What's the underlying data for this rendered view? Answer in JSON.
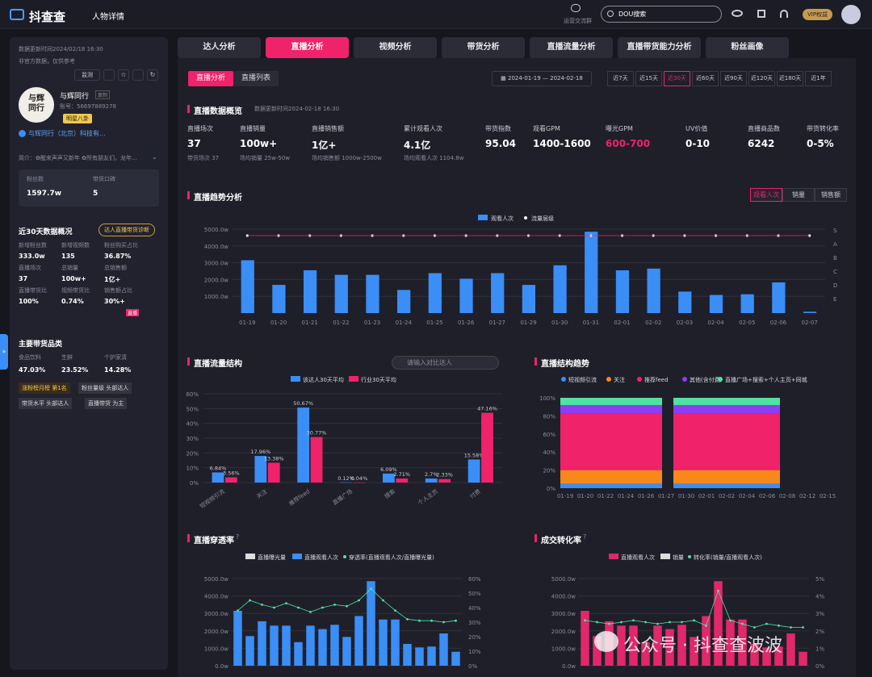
{
  "header": {
    "logo": "抖查查",
    "page_title": "人物详情",
    "live_group": "运营交流群",
    "search_placeholder": "DOU搜索",
    "vip": "VIP权益"
  },
  "tabs": [
    "达人分析",
    "直播分析",
    "视频分析",
    "带货分析",
    "直播流量分析",
    "直播带货能力分析",
    "粉丝画像"
  ],
  "sidebar": {
    "update_time": "数据更新时间2024/02/18 16:30",
    "note": "非官方数据，仅供参考",
    "monitor": "监测",
    "name": "与辉同行",
    "copy": "复制",
    "account": "账号：56697889278",
    "badge": "明星八卦",
    "verify": "与辉同行（北京）科技有...",
    "intro": "简介：✿醒来声声又新年 ✿所有朋友们，龙年...",
    "fans_label": "粉丝数",
    "fans": "1597.7w",
    "rep_label": "带货口碑",
    "rep": "5",
    "d30_title": "近30天数据概况",
    "d30_badge": "达人直播带货诊断",
    "stats": [
      {
        "label": "新增粉丝数",
        "value": "333.0w"
      },
      {
        "label": "新增视频数",
        "value": "135"
      },
      {
        "label": "粉丝购买占比",
        "value": "36.87%"
      },
      {
        "label": "直播场次",
        "value": "37"
      },
      {
        "label": "总销量",
        "value": "100w+"
      },
      {
        "label": "总销售额",
        "value": "1亿+"
      },
      {
        "label": "直播带货比",
        "value": "100%"
      },
      {
        "label": "视频带货比",
        "value": "0.74%"
      },
      {
        "label": "销售额占比",
        "value": "30%+"
      }
    ],
    "cat_title": "主要带货品类",
    "cats": [
      {
        "label": "食品饮料",
        "value": "47.03%"
      },
      {
        "label": "生鲜",
        "value": "23.52%"
      },
      {
        "label": "个护家清",
        "value": "14.28%"
      }
    ],
    "tags": [
      "涨粉榜月榜 第1名",
      "粉丝量级 头部达人",
      "带货水平 头部达人",
      "直播带货 为主"
    ],
    "sale_badge": "直播"
  },
  "main": {
    "subtab1": "直播分析",
    "subtab2": "直播列表",
    "date_start": "2024-01-19",
    "date_end": "2024-02-18",
    "ranges": [
      "近7天",
      "近15天",
      "近30天",
      "近60天",
      "近90天",
      "近120天",
      "近180天",
      "近1年"
    ],
    "overview_title": "直播数据概览",
    "overview_time": "数据更新时间2024-02-18 16:30",
    "metrics": [
      {
        "label": "直播场次",
        "value": "37",
        "sub": "带货场次 37"
      },
      {
        "label": "直播销量",
        "value": "100w+",
        "sub": "场均销量 25w-50w"
      },
      {
        "label": "直播销售额",
        "value": "1亿+",
        "sub": "场均销售额 1000w-2500w"
      },
      {
        "label": "累计观看人次",
        "value": "4.1亿",
        "sub": "场均观看人次 1104.8w"
      },
      {
        "label": "带货指数",
        "value": "95.04",
        "sub": ""
      },
      {
        "label": "观看GPM",
        "value": "1400-1600",
        "sub": ""
      },
      {
        "label": "曝光GPM",
        "value": "600-700",
        "sub": ""
      },
      {
        "label": "UV价值",
        "value": "0-10",
        "sub": ""
      },
      {
        "label": "直播商品数",
        "value": "6242",
        "sub": ""
      },
      {
        "label": "带货转化率",
        "value": "0-5%",
        "sub": ""
      }
    ],
    "trend_title": "直播趋势分析",
    "trend_btns": [
      "观看人次",
      "销量",
      "销售额"
    ],
    "flow_title": "直播流量结构",
    "flow_search": "请输入对比达人",
    "struct_title": "直播结构趋势",
    "pen_title": "直播穿透率",
    "conv_title": "成交转化率",
    "watermark": "公众号 · 抖查查波波"
  },
  "chart_data": [
    {
      "type": "bar",
      "title": "",
      "legend": [
        "观看人次",
        "流量层级"
      ],
      "categories": [
        "01-19",
        "01-20",
        "01-21",
        "01-22",
        "01-23",
        "01-24",
        "01-25",
        "01-26",
        "01-27",
        "01-29",
        "01-30",
        "01-31",
        "02-01",
        "02-02",
        "02-03",
        "02-04",
        "02-05",
        "02-06",
        "02-07"
      ],
      "values": [
        3150,
        1680,
        2550,
        2280,
        2280,
        1380,
        2380,
        2050,
        2380,
        1680,
        2850,
        4850,
        2550,
        2650,
        1280,
        1080,
        1120,
        1830,
        80
      ],
      "ylim": [
        0,
        5000
      ],
      "yticks": [
        "1000.0w",
        "2000.0w",
        "3000.0w",
        "4000.0w",
        "5000.0w"
      ],
      "y2ticks": [
        "S",
        "A",
        "B",
        "C",
        "D",
        "E"
      ]
    },
    {
      "type": "bar",
      "title": "",
      "series": [
        {
          "name": "该达人30天平均",
          "values": [
            6.84,
            17.96,
            50.67,
            0.12,
            6.09,
            2.7,
            15.58
          ]
        },
        {
          "name": "行业30天平均",
          "values": [
            3.56,
            13.38,
            30.77,
            0.04,
            2.71,
            2.33,
            47.16
          ]
        }
      ],
      "categories": [
        "短视频引流",
        "关注",
        "推荐feed",
        "直播广场",
        "搜索",
        "个人主页",
        "付费"
      ],
      "ylim": [
        0,
        60
      ],
      "yticks": [
        "0%",
        "10%",
        "20%",
        "30%",
        "40%",
        "50%",
        "60%"
      ]
    },
    {
      "type": "area",
      "title": "",
      "legend": [
        "短视频引流",
        "关注",
        "推荐feed",
        "其他(含付费)",
        "直播广场+搜索+个人主页+同城"
      ],
      "categories": [
        "01-19",
        "01-20",
        "01-22",
        "01-24",
        "01-26",
        "01-27",
        "01-30",
        "02-01",
        "02-02",
        "02-04",
        "02-06",
        "02-08",
        "02-12",
        "02-15"
      ],
      "yticks": [
        "0%",
        "20%",
        "40%",
        "60%",
        "80%",
        "100%"
      ]
    },
    {
      "type": "bar",
      "title": "",
      "legend": [
        "直播曝光量",
        "直播观看人次",
        "穿透率(直播观看人次/直播曝光量)"
      ],
      "values": [
        3150,
        1700,
        2550,
        2300,
        2300,
        1350,
        2300,
        2100,
        2350,
        1650,
        2850,
        4850,
        2650,
        2650,
        1250,
        1050,
        1100,
        1850,
        800
      ],
      "rate": [
        38,
        45,
        42,
        40,
        43,
        40,
        37,
        40,
        42,
        41,
        45,
        53,
        45,
        38,
        32,
        31,
        31,
        30,
        31
      ],
      "yticks": [
        "0.0w",
        "1000.0w",
        "2000.0w",
        "3000.0w",
        "4000.0w",
        "5000.0w"
      ],
      "y2ticks": [
        "0%",
        "10%",
        "20%",
        "30%",
        "40%",
        "50%",
        "60%"
      ]
    },
    {
      "type": "bar",
      "title": "",
      "legend": [
        "直播观看人次",
        "销量",
        "转化率(销量/直播观看人次)"
      ],
      "values": [
        3150,
        1700,
        2550,
        2300,
        2300,
        1350,
        2300,
        2100,
        2350,
        1650,
        2850,
        4850,
        2650,
        2650,
        1250,
        1050,
        1100,
        1850,
        800
      ],
      "rate": [
        2.6,
        2.5,
        2.4,
        2.5,
        2.6,
        2.5,
        2.4,
        2.5,
        2.5,
        2.6,
        2.3,
        4.3,
        2.6,
        2.4,
        2.2,
        2.4,
        2.3,
        2.2,
        2.2
      ],
      "yticks": [
        "0.0w",
        "1000.0w",
        "2000.0w",
        "3000.0w",
        "4000.0w",
        "5000.0w"
      ],
      "y2ticks": [
        "0%",
        "1%",
        "2%",
        "3%",
        "4%",
        "5%"
      ]
    }
  ]
}
